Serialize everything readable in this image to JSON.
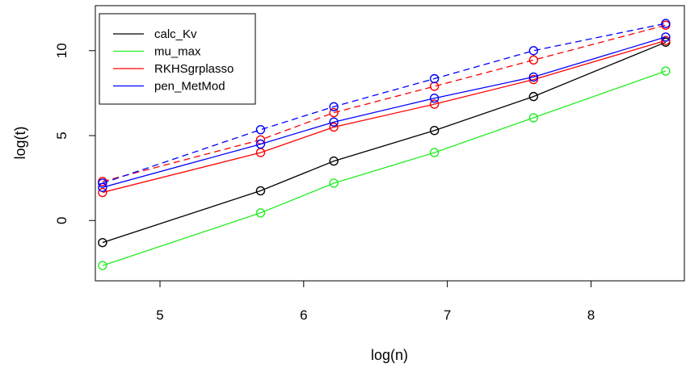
{
  "chart_data": {
    "type": "line",
    "title": "",
    "xlabel": "log(n)",
    "ylabel": "log(t)",
    "xlim": [
      4.55,
      8.65
    ],
    "ylim": [
      -3.55,
      12.65
    ],
    "xticks": [
      "5",
      "6",
      "7",
      "8"
    ],
    "yticks": [
      "0",
      "5",
      "10"
    ],
    "grid": false,
    "legend_position": "top-left",
    "x": [
      4.6,
      5.7,
      6.21,
      6.91,
      7.6,
      8.52
    ],
    "series": [
      {
        "name": "calc_Kv",
        "color": "#000000",
        "linestyle": "solid",
        "values": [
          -1.3,
          1.75,
          3.5,
          5.3,
          7.3,
          10.5
        ]
      },
      {
        "name": "mu_max",
        "color": "#22ee22",
        "linestyle": "solid",
        "values": [
          -2.65,
          0.45,
          2.2,
          4.0,
          6.05,
          8.8
        ]
      },
      {
        "name": "RKHSgrplasso",
        "color": "#ff0000",
        "linestyle": "solid",
        "values": [
          1.65,
          4.0,
          5.5,
          6.85,
          8.3,
          10.6
        ]
      },
      {
        "name": "",
        "color": "#ff0000",
        "linestyle": "dashed",
        "values": [
          2.3,
          4.75,
          6.35,
          7.9,
          9.45,
          11.5
        ]
      },
      {
        "name": "pen_MetMod",
        "color": "#0000ff",
        "linestyle": "solid",
        "values": [
          1.95,
          4.5,
          5.8,
          7.2,
          8.45,
          10.8
        ]
      },
      {
        "name": "",
        "color": "#0000ff",
        "linestyle": "dashed",
        "values": [
          2.2,
          5.35,
          6.7,
          8.35,
          10.0,
          11.6
        ]
      }
    ]
  }
}
